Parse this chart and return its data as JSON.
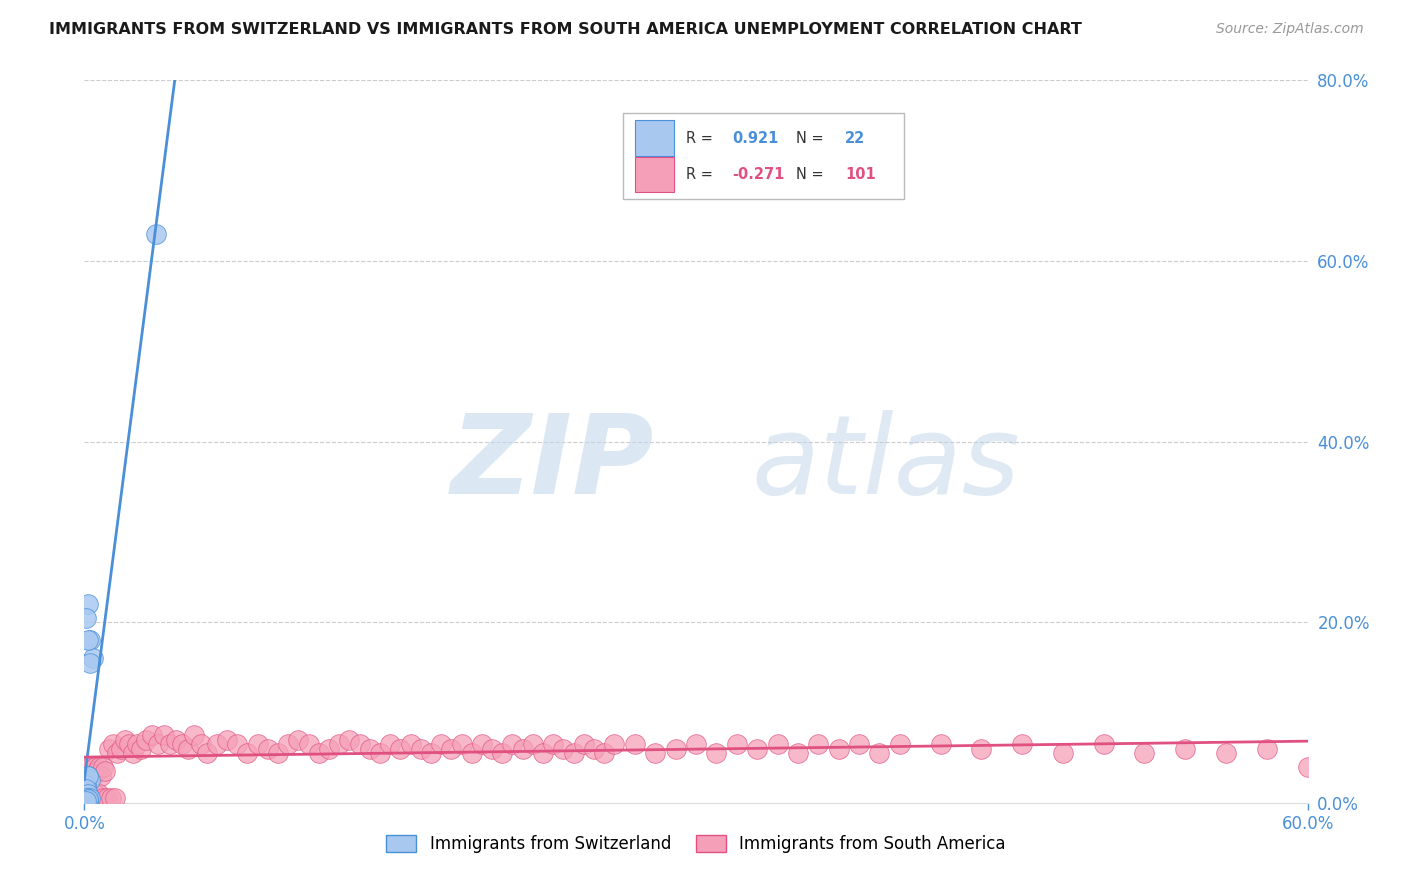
{
  "title": "IMMIGRANTS FROM SWITZERLAND VS IMMIGRANTS FROM SOUTH AMERICA UNEMPLOYMENT CORRELATION CHART",
  "source": "Source: ZipAtlas.com",
  "xmin": 0.0,
  "xmax": 0.6,
  "ymin": 0.0,
  "ymax": 0.8,
  "swiss_color": "#a8c8f0",
  "swiss_line_color": "#4a90d9",
  "sa_color": "#f5a0b8",
  "sa_line_color": "#e05080",
  "swiss_R": 0.921,
  "swiss_N": 22,
  "sa_R": -0.271,
  "sa_N": 101,
  "watermark_zip": "ZIP",
  "watermark_atlas": "atlas",
  "background": "#ffffff",
  "grid_color": "#cccccc",
  "title_color": "#1a1a1a",
  "axis_label_color": "#4a90d9",
  "swiss_points_x": [
    0.002,
    0.003,
    0.004,
    0.003,
    0.002,
    0.001,
    0.002,
    0.003,
    0.001,
    0.002,
    0.001,
    0.002,
    0.002,
    0.003,
    0.002,
    0.001,
    0.001,
    0.002,
    0.001,
    0.002,
    0.035,
    0.001
  ],
  "swiss_points_y": [
    0.22,
    0.18,
    0.16,
    0.155,
    0.18,
    0.205,
    0.03,
    0.025,
    0.02,
    0.03,
    0.015,
    0.01,
    0.005,
    0.005,
    0.003,
    0.005,
    0.003,
    0.002,
    0.003,
    0.004,
    0.63,
    0.002
  ],
  "sa_points_x": [
    0.001,
    0.002,
    0.003,
    0.004,
    0.005,
    0.006,
    0.007,
    0.008,
    0.009,
    0.01,
    0.012,
    0.014,
    0.016,
    0.018,
    0.02,
    0.022,
    0.024,
    0.026,
    0.028,
    0.03,
    0.033,
    0.036,
    0.039,
    0.042,
    0.045,
    0.048,
    0.051,
    0.054,
    0.057,
    0.06,
    0.065,
    0.07,
    0.075,
    0.08,
    0.085,
    0.09,
    0.095,
    0.1,
    0.105,
    0.11,
    0.115,
    0.12,
    0.125,
    0.13,
    0.135,
    0.14,
    0.145,
    0.15,
    0.155,
    0.16,
    0.165,
    0.17,
    0.175,
    0.18,
    0.185,
    0.19,
    0.195,
    0.2,
    0.205,
    0.21,
    0.215,
    0.22,
    0.225,
    0.23,
    0.235,
    0.24,
    0.245,
    0.25,
    0.255,
    0.26,
    0.27,
    0.28,
    0.29,
    0.3,
    0.31,
    0.32,
    0.33,
    0.34,
    0.35,
    0.36,
    0.37,
    0.38,
    0.39,
    0.4,
    0.42,
    0.44,
    0.46,
    0.48,
    0.5,
    0.52,
    0.54,
    0.56,
    0.58,
    0.6,
    0.003,
    0.005,
    0.007,
    0.009,
    0.011,
    0.013,
    0.015
  ],
  "sa_points_y": [
    0.04,
    0.035,
    0.04,
    0.03,
    0.04,
    0.035,
    0.04,
    0.03,
    0.04,
    0.035,
    0.06,
    0.065,
    0.055,
    0.06,
    0.07,
    0.065,
    0.055,
    0.065,
    0.06,
    0.07,
    0.075,
    0.065,
    0.075,
    0.065,
    0.07,
    0.065,
    0.06,
    0.075,
    0.065,
    0.055,
    0.065,
    0.07,
    0.065,
    0.055,
    0.065,
    0.06,
    0.055,
    0.065,
    0.07,
    0.065,
    0.055,
    0.06,
    0.065,
    0.07,
    0.065,
    0.06,
    0.055,
    0.065,
    0.06,
    0.065,
    0.06,
    0.055,
    0.065,
    0.06,
    0.065,
    0.055,
    0.065,
    0.06,
    0.055,
    0.065,
    0.06,
    0.065,
    0.055,
    0.065,
    0.06,
    0.055,
    0.065,
    0.06,
    0.055,
    0.065,
    0.065,
    0.055,
    0.06,
    0.065,
    0.055,
    0.065,
    0.06,
    0.065,
    0.055,
    0.065,
    0.06,
    0.065,
    0.055,
    0.065,
    0.065,
    0.06,
    0.065,
    0.055,
    0.065,
    0.055,
    0.06,
    0.055,
    0.06,
    0.04,
    0.01,
    0.01,
    0.01,
    0.005,
    0.005,
    0.005,
    0.005
  ]
}
